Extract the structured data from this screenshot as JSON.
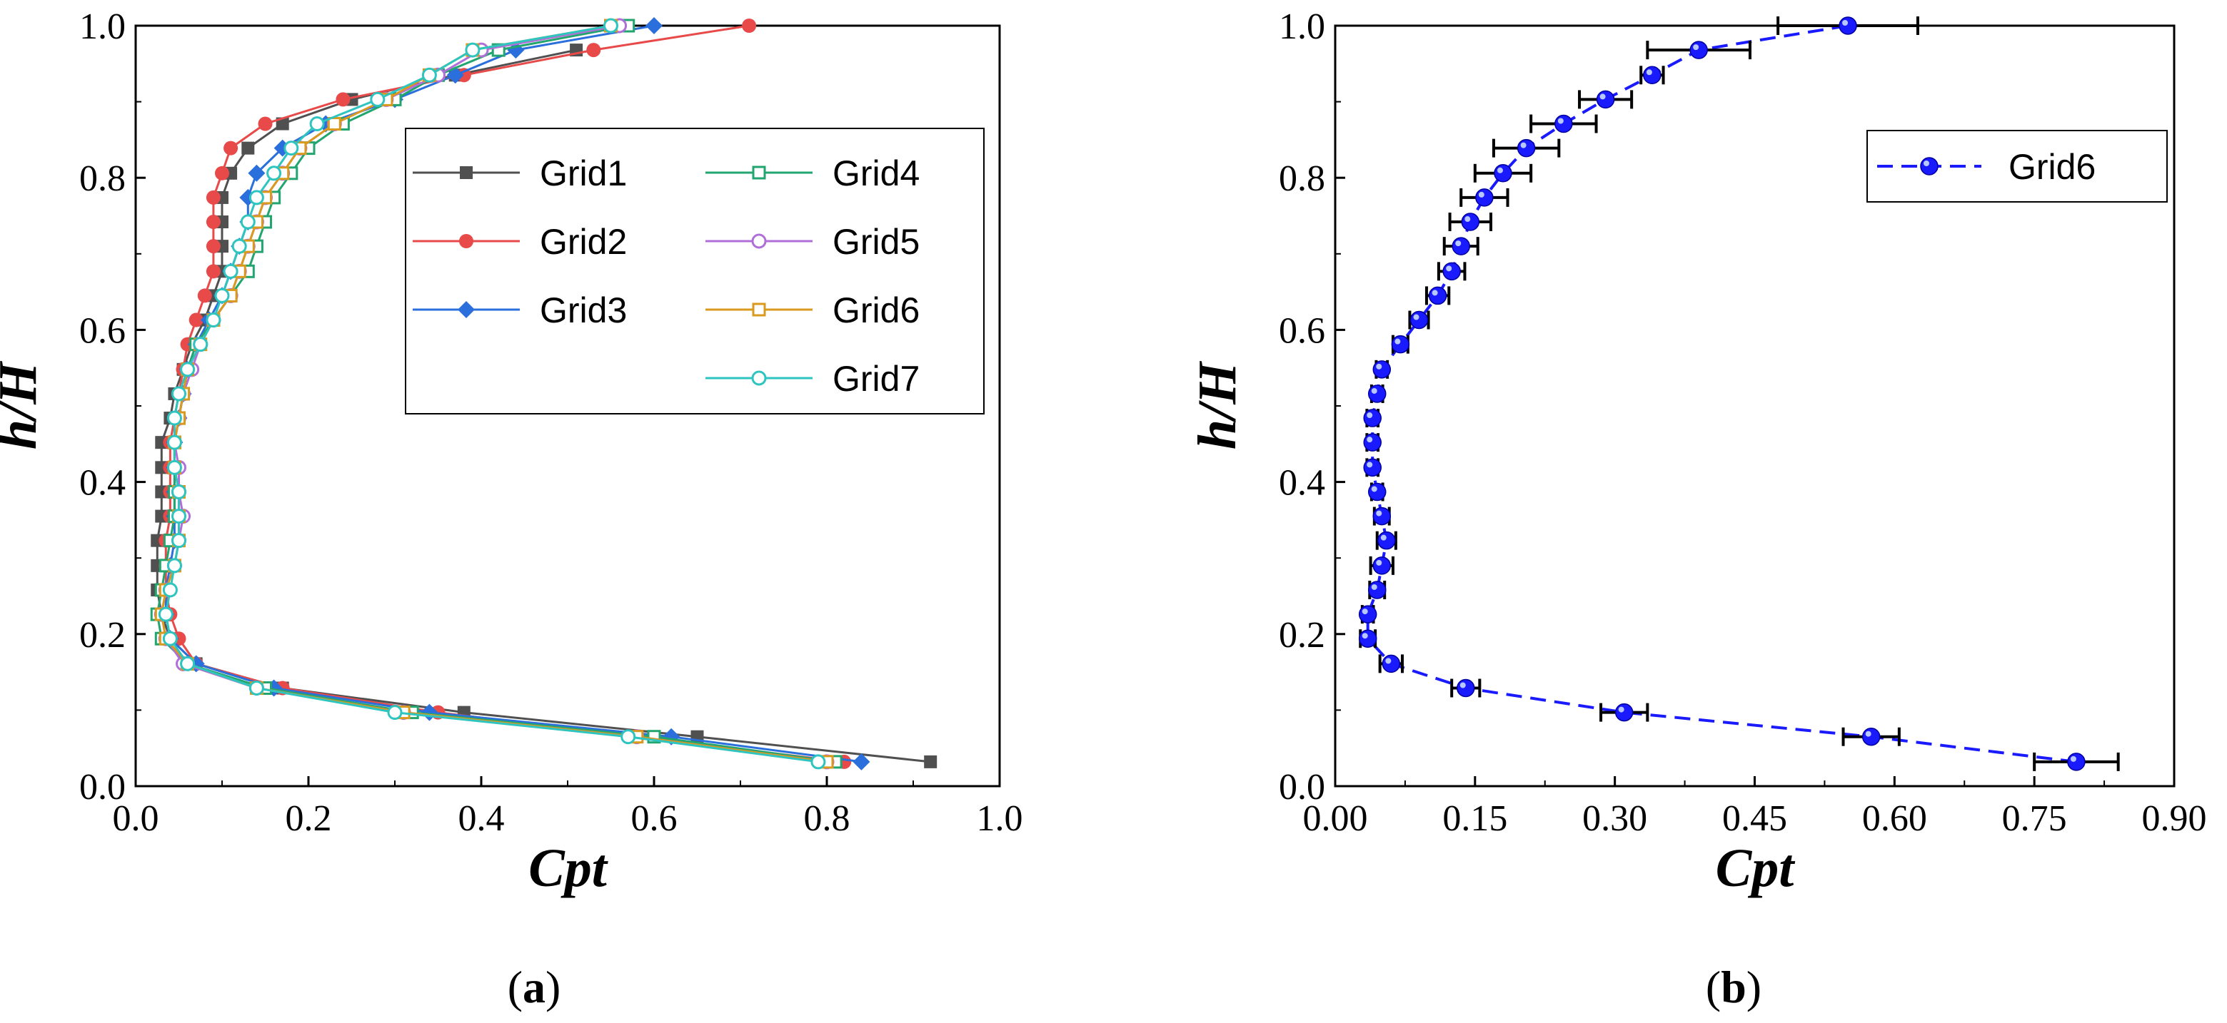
{
  "panels": [
    {
      "caption_open": "(",
      "caption_letter": "a",
      "caption_close": ")"
    },
    {
      "caption_open": "(",
      "caption_letter": "b",
      "caption_close": ")"
    }
  ],
  "chart_data": [
    {
      "type": "line",
      "orientation": "profile",
      "xlabel": "Cpt",
      "ylabel": "h/H",
      "xlim": [
        0.0,
        1.0
      ],
      "ylim": [
        0.0,
        1.0
      ],
      "xticks": [
        "0.0",
        "0.2",
        "0.4",
        "0.6",
        "0.8",
        "1.0"
      ],
      "yticks": [
        "0.0",
        "0.2",
        "0.4",
        "0.6",
        "0.8",
        "1.0"
      ],
      "legend_position": "top-right",
      "y": [
        0.032,
        0.065,
        0.097,
        0.129,
        0.161,
        0.194,
        0.226,
        0.258,
        0.29,
        0.323,
        0.355,
        0.387,
        0.419,
        0.452,
        0.484,
        0.516,
        0.548,
        0.581,
        0.613,
        0.645,
        0.677,
        0.71,
        0.742,
        0.774,
        0.806,
        0.839,
        0.871,
        0.903,
        0.935,
        0.968,
        1.0
      ],
      "series": [
        {
          "name": "Grid1",
          "color": "#505050",
          "marker": "square-filled",
          "x": [
            0.92,
            0.65,
            0.38,
            0.17,
            0.07,
            0.04,
            0.03,
            0.025,
            0.025,
            0.025,
            0.03,
            0.03,
            0.03,
            0.03,
            0.04,
            0.045,
            0.055,
            0.065,
            0.08,
            0.09,
            0.1,
            0.1,
            0.1,
            0.1,
            0.11,
            0.13,
            0.17,
            0.25,
            0.37,
            0.51,
            null
          ]
        },
        {
          "name": "Grid2",
          "color": "#e84a4a",
          "marker": "circle-filled",
          "x": [
            0.82,
            0.58,
            0.35,
            0.17,
            0.07,
            0.05,
            0.04,
            0.035,
            0.035,
            0.035,
            0.04,
            0.04,
            0.04,
            0.04,
            0.045,
            0.05,
            0.055,
            0.06,
            0.07,
            0.08,
            0.09,
            0.09,
            0.09,
            0.09,
            0.1,
            0.11,
            0.15,
            0.24,
            0.38,
            0.53,
            0.71
          ]
        },
        {
          "name": "Grid3",
          "color": "#2a6fdb",
          "marker": "diamond-filled",
          "x": [
            0.84,
            0.62,
            0.34,
            0.16,
            0.07,
            0.04,
            0.035,
            0.035,
            0.04,
            0.045,
            0.045,
            0.045,
            0.045,
            0.045,
            0.05,
            0.055,
            0.06,
            0.07,
            0.085,
            0.1,
            0.11,
            0.12,
            0.13,
            0.13,
            0.14,
            0.17,
            0.22,
            0.3,
            0.37,
            0.44,
            0.6
          ]
        },
        {
          "name": "Grid4",
          "color": "#22a56f",
          "marker": "square-open",
          "x": [
            0.81,
            0.6,
            0.32,
            0.15,
            0.06,
            0.03,
            0.025,
            0.03,
            0.035,
            0.04,
            0.045,
            0.045,
            0.045,
            0.045,
            0.05,
            0.055,
            0.06,
            0.07,
            0.09,
            0.11,
            0.13,
            0.14,
            0.15,
            0.16,
            0.18,
            0.2,
            0.24,
            0.3,
            0.35,
            0.42,
            0.57
          ]
        },
        {
          "name": "Grid5",
          "color": "#b06fd8",
          "marker": "circle-open",
          "x": [
            0.8,
            0.58,
            0.31,
            0.14,
            0.055,
            0.035,
            0.03,
            0.035,
            0.045,
            0.05,
            0.055,
            0.05,
            0.05,
            0.045,
            0.05,
            0.055,
            0.065,
            0.075,
            0.09,
            0.11,
            0.12,
            0.13,
            0.14,
            0.15,
            0.17,
            0.19,
            0.23,
            0.29,
            0.35,
            0.4,
            0.56
          ]
        },
        {
          "name": "Grid6",
          "color": "#d99a1e",
          "marker": "square-open",
          "x": [
            0.8,
            0.58,
            0.31,
            0.14,
            0.06,
            0.035,
            0.03,
            0.035,
            0.045,
            0.05,
            0.05,
            0.05,
            0.045,
            0.045,
            0.05,
            0.055,
            0.06,
            0.075,
            0.09,
            0.11,
            0.12,
            0.13,
            0.14,
            0.15,
            0.17,
            0.19,
            0.23,
            0.29,
            0.34,
            0.39,
            0.55
          ]
        },
        {
          "name": "Grid7",
          "color": "#2ec4c0",
          "marker": "circle-open",
          "x": [
            0.79,
            0.57,
            0.3,
            0.14,
            0.06,
            0.04,
            0.035,
            0.04,
            0.045,
            0.05,
            0.05,
            0.05,
            0.045,
            0.045,
            0.045,
            0.05,
            0.06,
            0.075,
            0.09,
            0.1,
            0.11,
            0.12,
            0.13,
            0.14,
            0.16,
            0.18,
            0.21,
            0.28,
            0.34,
            0.39,
            0.55
          ]
        }
      ]
    },
    {
      "type": "line",
      "orientation": "profile",
      "xlabel": "Cpt",
      "ylabel": "h/H",
      "xlim": [
        0.0,
        0.9
      ],
      "ylim": [
        0.0,
        1.0
      ],
      "xticks": [
        "0.00",
        "0.15",
        "0.30",
        "0.45",
        "0.60",
        "0.75",
        "0.90"
      ],
      "yticks": [
        "0.0",
        "0.2",
        "0.4",
        "0.6",
        "0.8",
        "1.0"
      ],
      "legend_position": "top-right",
      "series": [
        {
          "name": "Grid6",
          "color": "#1a1aff",
          "marker": "sphere",
          "line_style": "dashed",
          "y": [
            0.032,
            0.065,
            0.097,
            0.129,
            0.161,
            0.194,
            0.226,
            0.258,
            0.29,
            0.323,
            0.355,
            0.387,
            0.419,
            0.452,
            0.484,
            0.516,
            0.548,
            0.581,
            0.613,
            0.645,
            0.677,
            0.71,
            0.742,
            0.774,
            0.806,
            0.839,
            0.871,
            0.903,
            0.935,
            0.968,
            1.0
          ],
          "x": [
            0.795,
            0.575,
            0.31,
            0.14,
            0.06,
            0.035,
            0.035,
            0.045,
            0.05,
            0.055,
            0.05,
            0.045,
            0.04,
            0.04,
            0.04,
            0.045,
            0.05,
            0.07,
            0.09,
            0.11,
            0.125,
            0.135,
            0.145,
            0.16,
            0.18,
            0.205,
            0.245,
            0.29,
            0.34,
            0.39,
            0.55
          ],
          "err": [
            0.045,
            0.03,
            0.025,
            0.015,
            0.012,
            0.008,
            0.006,
            0.008,
            0.012,
            0.01,
            0.008,
            0.006,
            0.006,
            0.006,
            0.006,
            0.006,
            0.006,
            0.008,
            0.01,
            0.012,
            0.014,
            0.018,
            0.022,
            0.025,
            0.03,
            0.035,
            0.035,
            0.028,
            0.012,
            0.055,
            0.075
          ]
        }
      ]
    }
  ]
}
